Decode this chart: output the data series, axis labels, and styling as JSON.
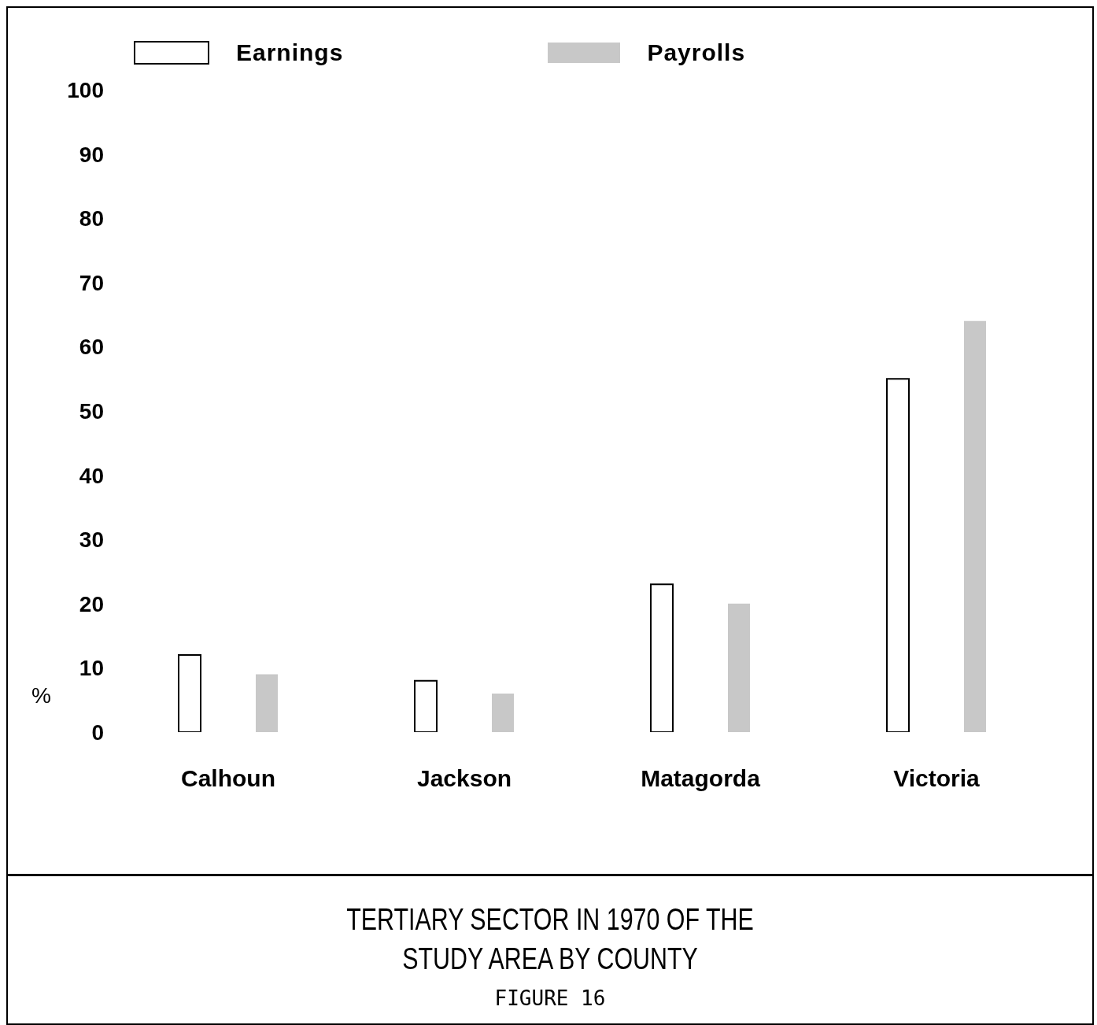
{
  "chart_data": {
    "type": "bar",
    "title": "TERTIARY SECTOR IN 1970 OF THE\nSTUDY AREA BY COUNTY",
    "annotations": [
      "FIGURE 16"
    ],
    "ylabel": "%",
    "categories": [
      "Calhoun",
      "Jackson",
      "Matagorda",
      "Victoria"
    ],
    "series": [
      {
        "name": "Earnings",
        "color": "#ffffff",
        "values": [
          12,
          8,
          23,
          55
        ]
      },
      {
        "name": "Payrolls",
        "color": "#c8c8c8",
        "values": [
          9,
          6,
          20,
          64
        ]
      }
    ],
    "ylim": [
      0,
      100
    ],
    "yticks": [
      0,
      10,
      20,
      30,
      40,
      50,
      60,
      70,
      80,
      90,
      100
    ],
    "grid": false,
    "legend": "top"
  }
}
